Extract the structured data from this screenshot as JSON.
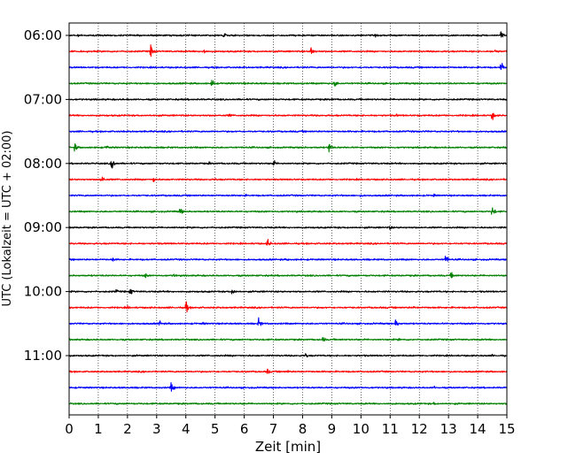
{
  "chart_data": {
    "type": "line",
    "title": "",
    "xlabel": "Zeit  [min]",
    "ylabel": "UTC (Lokalzeit = UTC + 02:00)",
    "xlim": [
      0,
      15
    ],
    "x_ticks": [
      0,
      1,
      2,
      3,
      4,
      5,
      6,
      7,
      8,
      9,
      10,
      11,
      12,
      13,
      14,
      15
    ],
    "y_tick_labels": [
      "06:00",
      "07:00",
      "08:00",
      "09:00",
      "10:00",
      "11:00"
    ],
    "traces_per_hour": 4,
    "trace_colors": [
      "#000000",
      "#ff0000",
      "#0000ff",
      "#008000"
    ],
    "grid": {
      "x": true,
      "style": "dotted"
    },
    "traces": [
      {
        "start": "06:00",
        "events": [
          [
            5.3,
            0.6
          ],
          [
            14.8,
            0.7
          ],
          [
            0.3,
            0.2
          ],
          [
            10.5,
            0.25
          ]
        ]
      },
      {
        "start": "06:15",
        "events": [
          [
            2.8,
            1.0
          ],
          [
            4.6,
            0.6
          ],
          [
            8.3,
            1.0
          ],
          [
            14.6,
            0.5
          ]
        ]
      },
      {
        "start": "06:30",
        "events": [
          [
            14.8,
            0.9
          ],
          [
            5.0,
            0.2
          ],
          [
            11.0,
            0.2
          ]
        ]
      },
      {
        "start": "06:45",
        "events": [
          [
            4.9,
            0.8
          ],
          [
            9.1,
            0.7
          ],
          [
            3.0,
            0.2
          ]
        ]
      },
      {
        "start": "07:00",
        "events": [
          [
            2.0,
            0.2
          ],
          [
            9.0,
            0.25
          ]
        ]
      },
      {
        "start": "07:15",
        "events": [
          [
            5.5,
            0.4
          ],
          [
            11.2,
            0.3
          ],
          [
            14.5,
            0.8
          ]
        ]
      },
      {
        "start": "07:30",
        "events": [
          [
            8.0,
            0.2
          ],
          [
            12.2,
            0.2
          ]
        ]
      },
      {
        "start": "07:45",
        "events": [
          [
            0.2,
            0.7
          ],
          [
            1.3,
            0.4
          ],
          [
            8.9,
            1.0
          ]
        ]
      },
      {
        "start": "08:00",
        "events": [
          [
            1.45,
            1.3
          ],
          [
            7.0,
            0.6
          ],
          [
            4.8,
            0.25
          ]
        ]
      },
      {
        "start": "08:15",
        "events": [
          [
            1.1,
            0.9
          ],
          [
            2.9,
            0.6
          ],
          [
            5.0,
            0.3
          ]
        ]
      },
      {
        "start": "08:30",
        "events": [
          [
            6.0,
            0.3
          ],
          [
            10.0,
            0.3
          ],
          [
            12.5,
            0.3
          ]
        ]
      },
      {
        "start": "08:45",
        "events": [
          [
            3.8,
            0.7
          ],
          [
            14.5,
            0.9
          ],
          [
            2.0,
            0.2
          ]
        ]
      },
      {
        "start": "09:00",
        "events": [
          [
            3.6,
            0.2
          ],
          [
            11.0,
            0.4
          ],
          [
            14.8,
            0.2
          ]
        ]
      },
      {
        "start": "09:15",
        "events": [
          [
            6.8,
            0.8
          ],
          [
            2.0,
            0.2
          ]
        ]
      },
      {
        "start": "09:30",
        "events": [
          [
            1.5,
            0.4
          ],
          [
            12.9,
            0.9
          ],
          [
            7.5,
            0.2
          ]
        ]
      },
      {
        "start": "09:45",
        "events": [
          [
            2.6,
            0.5
          ],
          [
            3.6,
            0.4
          ],
          [
            13.1,
            0.7
          ]
        ]
      },
      {
        "start": "10:00",
        "events": [
          [
            2.1,
            0.7
          ],
          [
            5.6,
            0.7
          ],
          [
            1.6,
            0.4
          ]
        ]
      },
      {
        "start": "10:15",
        "events": [
          [
            4.0,
            1.0
          ],
          [
            2.0,
            0.3
          ],
          [
            11.8,
            0.3
          ]
        ]
      },
      {
        "start": "10:30",
        "events": [
          [
            3.1,
            0.5
          ],
          [
            6.5,
            0.8
          ],
          [
            11.2,
            0.8
          ],
          [
            4.6,
            0.3
          ]
        ]
      },
      {
        "start": "10:45",
        "events": [
          [
            8.7,
            0.5
          ],
          [
            11.3,
            0.3
          ]
        ]
      },
      {
        "start": "11:00",
        "events": [
          [
            8.1,
            0.5
          ],
          [
            5.5,
            0.2
          ],
          [
            14.5,
            0.2
          ]
        ]
      },
      {
        "start": "11:15",
        "events": [
          [
            6.8,
            0.5
          ],
          [
            7.5,
            0.3
          ],
          [
            2.5,
            0.2
          ]
        ]
      },
      {
        "start": "11:30",
        "events": [
          [
            3.5,
            0.9
          ],
          [
            12.5,
            0.3
          ]
        ]
      },
      {
        "start": "11:45",
        "events": [
          [
            12.5,
            0.3
          ],
          [
            6.0,
            0.2
          ]
        ]
      }
    ]
  }
}
